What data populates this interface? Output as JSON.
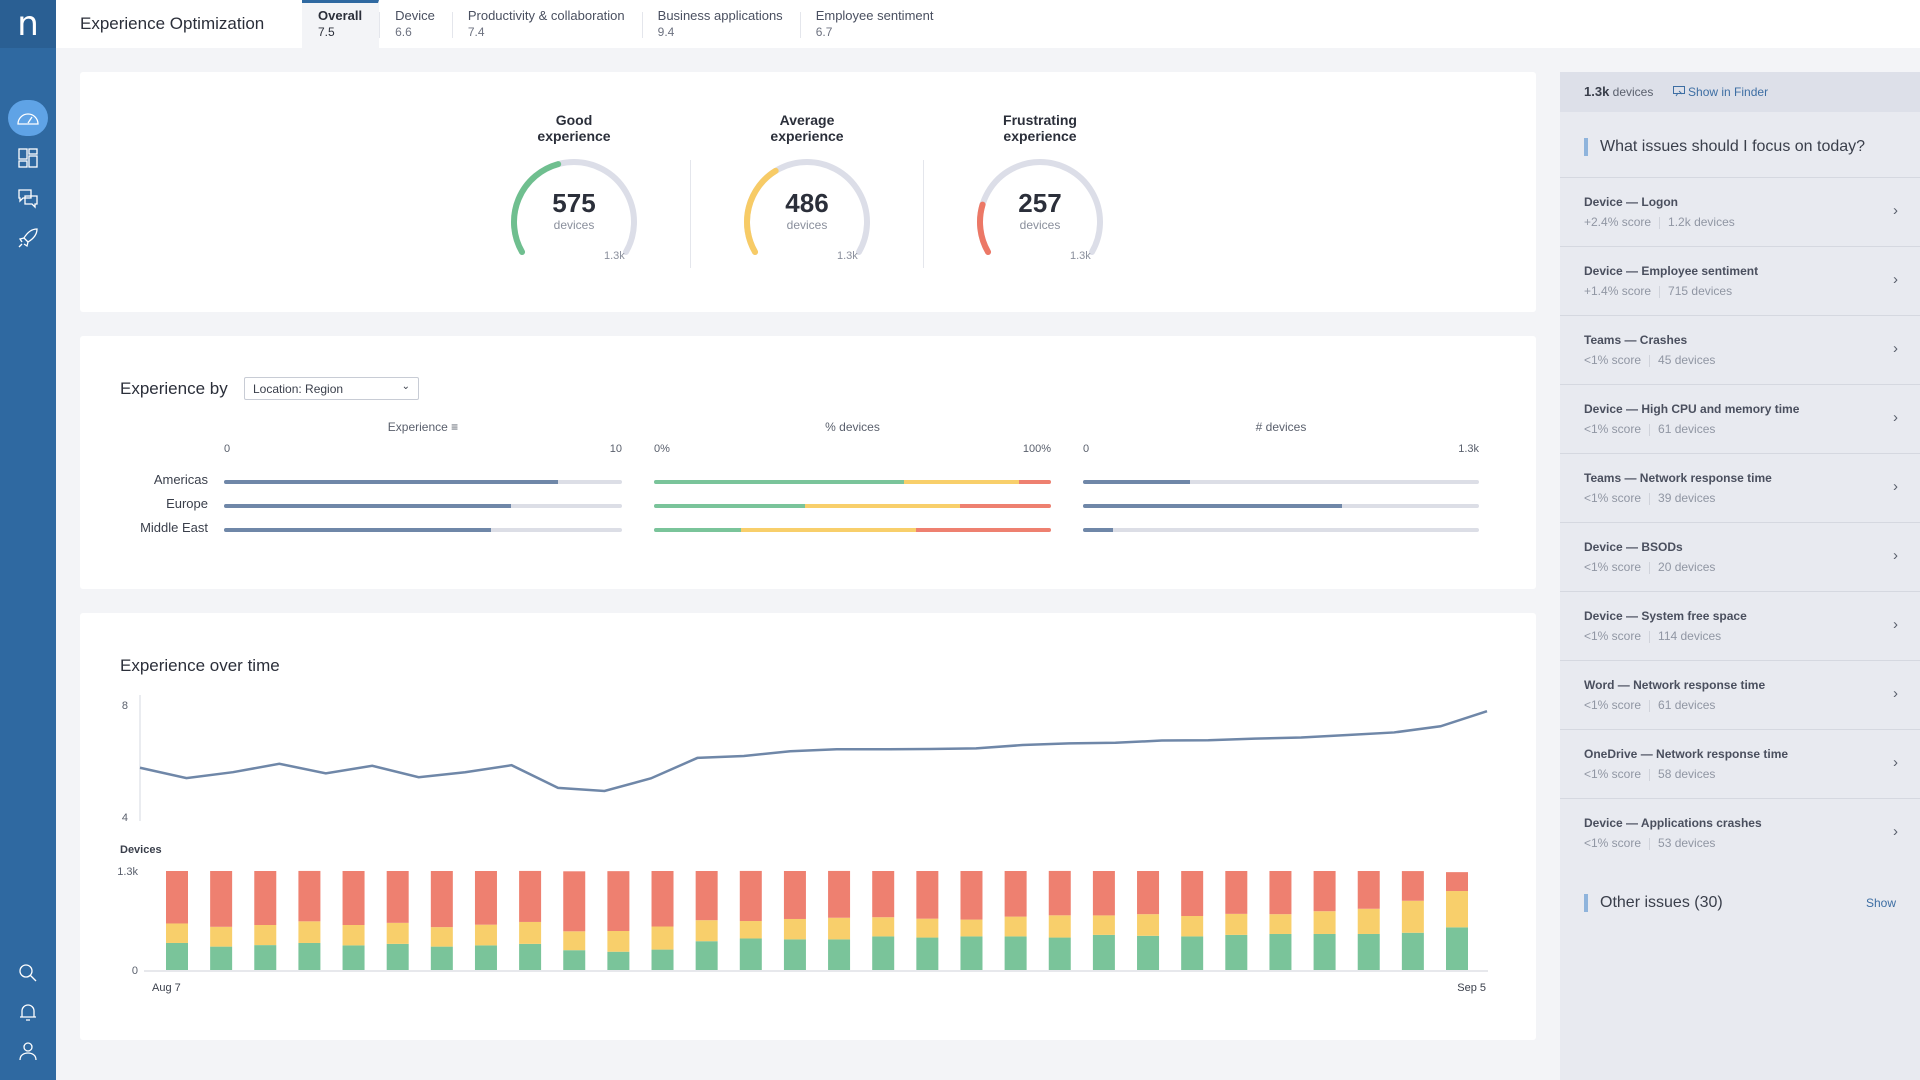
{
  "app": {
    "logo": "n",
    "title": "Experience Optimization"
  },
  "nav": {
    "top": [
      "dashboard-icon",
      "layout-grid-icon",
      "chat-icon",
      "rocket-icon"
    ],
    "bottom": [
      "search-icon",
      "bell-icon",
      "user-icon"
    ]
  },
  "tabs": [
    {
      "label": "Overall",
      "value": "7.5",
      "active": true
    },
    {
      "label": "Device",
      "value": "6.6"
    },
    {
      "label": "Productivity & collaboration",
      "value": "7.4"
    },
    {
      "label": "Business applications",
      "value": "9.4"
    },
    {
      "label": "Employee sentiment",
      "value": "6.7"
    }
  ],
  "gauges": [
    {
      "title1": "Good",
      "title2": "experience",
      "value": 575,
      "value_text": "575",
      "unit": "devices",
      "max": 1318,
      "max_text": "1.3k",
      "color": "#6fbf8f"
    },
    {
      "title1": "Average",
      "title2": "experience",
      "value": 486,
      "value_text": "486",
      "unit": "devices",
      "max": 1318,
      "max_text": "1.3k",
      "color": "#f7cb66"
    },
    {
      "title1": "Frustrating",
      "title2": "experience",
      "value": 257,
      "value_text": "257",
      "unit": "devices",
      "max": 1318,
      "max_text": "1.3k",
      "color": "#ec7866"
    }
  ],
  "experience_by": {
    "title": "Experience by",
    "select": "Location: Region",
    "columns": [
      {
        "header": "Experience",
        "min": "0",
        "max": "10"
      },
      {
        "header": "% devices",
        "min": "0%",
        "max": "100%"
      },
      {
        "header": "# devices",
        "min": "0",
        "max": "1.3k"
      }
    ],
    "rows": [
      {
        "label": "Americas",
        "experience": 8.4,
        "pct": [
          63,
          29,
          8
        ],
        "devices": 352
      },
      {
        "label": "Europe",
        "experience": 7.2,
        "pct": [
          38,
          39,
          23
        ],
        "devices": 851
      },
      {
        "label": "Middle East",
        "experience": 6.7,
        "pct": [
          22,
          44,
          34
        ],
        "devices": 97
      }
    ]
  },
  "over_time": {
    "title": "Experience over time"
  },
  "colors": {
    "good": "#7ac49a",
    "average": "#f8cf6b",
    "frustrating": "#ee8070",
    "line": "#6f87a8",
    "track": "#dcdee6",
    "accent": "#2f69a1"
  },
  "chart_data": [
    {
      "type": "line",
      "ylim": [
        4,
        8
      ],
      "yticks": [
        "8",
        "4"
      ],
      "values": [
        5.76,
        5.39,
        5.6,
        5.9,
        5.56,
        5.83,
        5.42,
        5.6,
        5.85,
        5.04,
        4.93,
        5.38,
        6.11,
        6.18,
        6.35,
        6.42,
        6.42,
        6.43,
        6.45,
        6.57,
        6.63,
        6.65,
        6.73,
        6.74,
        6.8,
        6.84,
        6.93,
        7.02,
        7.24,
        7.78
      ]
    },
    {
      "type": "bar",
      "stacked": true,
      "ylabel": "Devices",
      "ylim": [
        0,
        1300
      ],
      "yticks": [
        "1.3k",
        "0"
      ],
      "xticks": [
        "Aug 7",
        "Sep 5"
      ],
      "series": [
        {
          "values": [
            355,
            307,
            327,
            355,
            323,
            343,
            307,
            323,
            343,
            260,
            240,
            268,
            378,
            414,
            402,
            402,
            441,
            426,
            441,
            441,
            426,
            461,
            449,
            441,
            461,
            473,
            473,
            473,
            489,
            560
          ]
        },
        {
          "values": [
            256,
            260,
            264,
            284,
            268,
            276,
            256,
            272,
            288,
            248,
            272,
            303,
            276,
            229,
            268,
            284,
            252,
            248,
            221,
            260,
            292,
            256,
            284,
            268,
            276,
            260,
            299,
            331,
            420,
            477
          ]
        },
        {
          "values": [
            689,
            733,
            709,
            662,
            709,
            681,
            737,
            705,
            670,
            788,
            786,
            729,
            646,
            658,
            630,
            615,
            607,
            626,
            638,
            599,
            583,
            583,
            567,
            591,
            563,
            567,
            528,
            496,
            390,
            248
          ]
        }
      ]
    }
  ],
  "right_panel": {
    "count": "1.3k",
    "count_unit": "devices",
    "finder": "Show in Finder",
    "focus_title": "What issues should I focus on today?",
    "issues": [
      {
        "title": "Device — Logon",
        "score": "+2.4% score",
        "devices": "1.2k devices"
      },
      {
        "title": "Device — Employee sentiment",
        "score": "+1.4% score",
        "devices": "715 devices"
      },
      {
        "title": "Teams — Crashes",
        "score": "<1% score",
        "devices": "45 devices"
      },
      {
        "title": "Device — High CPU and memory time",
        "score": "<1% score",
        "devices": "61 devices"
      },
      {
        "title": "Teams — Network response time",
        "score": "<1% score",
        "devices": "39 devices"
      },
      {
        "title": "Device — BSODs",
        "score": "<1% score",
        "devices": "20 devices"
      },
      {
        "title": "Device — System free space",
        "score": "<1% score",
        "devices": "114 devices"
      },
      {
        "title": "Word — Network response time",
        "score": "<1% score",
        "devices": "61 devices"
      },
      {
        "title": "OneDrive — Network response time",
        "score": "<1% score",
        "devices": "58 devices"
      },
      {
        "title": "Device — Applications crashes",
        "score": "<1% score",
        "devices": "53 devices"
      }
    ],
    "other": "Other issues (30)",
    "show": "Show"
  }
}
